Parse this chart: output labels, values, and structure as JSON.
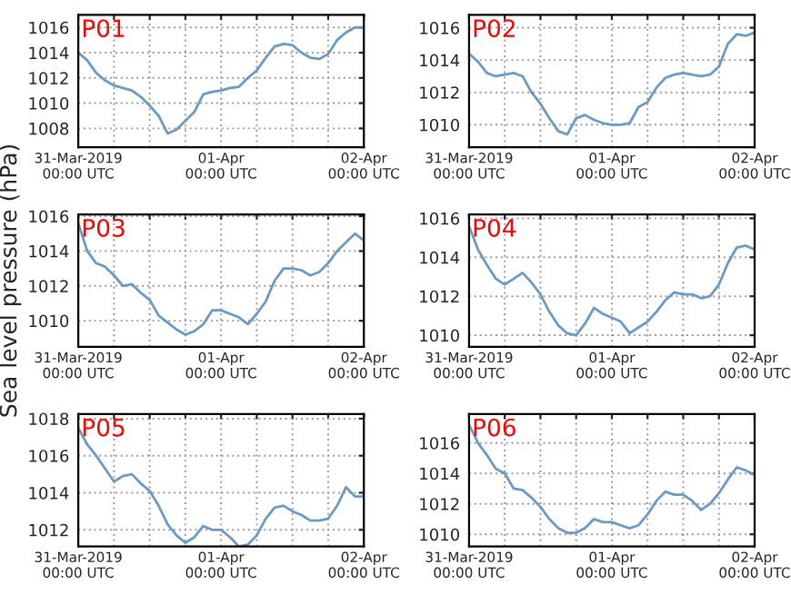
{
  "chart_data": [
    {
      "type": "line",
      "annotations": [
        "P01"
      ],
      "x": [
        "2019-03-31T00:00",
        "2019-03-31T01:30",
        "2019-03-31T03:00",
        "2019-03-31T04:30",
        "2019-03-31T06:00",
        "2019-03-31T07:30",
        "2019-03-31T09:00",
        "2019-03-31T10:30",
        "2019-03-31T12:00",
        "2019-03-31T13:30",
        "2019-03-31T15:00",
        "2019-03-31T16:30",
        "2019-03-31T18:00",
        "2019-03-31T19:30",
        "2019-03-31T21:00",
        "2019-03-31T22:30",
        "2019-04-01T00:00",
        "2019-04-01T01:30",
        "2019-04-01T03:00",
        "2019-04-01T04:30",
        "2019-04-01T06:00",
        "2019-04-01T07:30",
        "2019-04-01T09:00",
        "2019-04-01T10:30",
        "2019-04-01T12:00",
        "2019-04-01T13:30",
        "2019-04-01T15:00",
        "2019-04-01T16:30",
        "2019-04-01T18:00",
        "2019-04-01T19:30",
        "2019-04-01T21:00",
        "2019-04-01T22:30",
        "2019-04-02T00:00"
      ],
      "series": [
        {
          "color": "#6b9ac4",
          "values": [
            1014.0,
            1013.4,
            1012.4,
            1011.8,
            1011.4,
            1011.2,
            1011.0,
            1010.5,
            1009.8,
            1009.0,
            1007.6,
            1007.9,
            1008.6,
            1009.3,
            1010.7,
            1010.9,
            1011.0,
            1011.2,
            1011.3,
            1012.0,
            1012.6,
            1013.6,
            1014.5,
            1014.7,
            1014.6,
            1014.0,
            1013.6,
            1013.5,
            1013.9,
            1015.0,
            1015.6,
            1016.0,
            1016.0
          ]
        }
      ],
      "xlim": [
        "2019-03-31T00:00",
        "2019-04-02T00:00"
      ],
      "xticks": [
        {
          "value": "2019-03-31T00:00",
          "label": "31-Mar-2019\n00:00 UTC"
        },
        {
          "value": "2019-03-31T06:00",
          "label": null
        },
        {
          "value": "2019-03-31T12:00",
          "label": null
        },
        {
          "value": "2019-03-31T18:00",
          "label": null
        },
        {
          "value": "2019-04-01T00:00",
          "label": "01-Apr\n00:00 UTC"
        },
        {
          "value": "2019-04-01T06:00",
          "label": null
        },
        {
          "value": "2019-04-01T12:00",
          "label": null
        },
        {
          "value": "2019-04-01T18:00",
          "label": null
        },
        {
          "value": "2019-04-02T00:00",
          "label": "02-Apr\n00:00 UTC"
        }
      ],
      "ylim": [
        1006.5,
        1017
      ],
      "yticks": [
        1008,
        1010,
        1012,
        1014,
        1016
      ],
      "grid": true
    },
    {
      "type": "line",
      "annotations": [
        "P02"
      ],
      "x": [
        "2019-03-31T00:00",
        "2019-03-31T01:30",
        "2019-03-31T03:00",
        "2019-03-31T04:30",
        "2019-03-31T06:00",
        "2019-03-31T07:30",
        "2019-03-31T09:00",
        "2019-03-31T10:30",
        "2019-03-31T12:00",
        "2019-03-31T13:30",
        "2019-03-31T15:00",
        "2019-03-31T16:30",
        "2019-03-31T18:00",
        "2019-03-31T19:30",
        "2019-03-31T21:00",
        "2019-03-31T22:30",
        "2019-04-01T00:00",
        "2019-04-01T01:30",
        "2019-04-01T03:00",
        "2019-04-01T04:30",
        "2019-04-01T06:00",
        "2019-04-01T07:30",
        "2019-04-01T09:00",
        "2019-04-01T10:30",
        "2019-04-01T12:00",
        "2019-04-01T13:30",
        "2019-04-01T15:00",
        "2019-04-01T16:30",
        "2019-04-01T18:00",
        "2019-04-01T19:30",
        "2019-04-01T21:00",
        "2019-04-01T22:30",
        "2019-04-02T00:00"
      ],
      "series": [
        {
          "color": "#6b9ac4",
          "values": [
            1014.4,
            1013.9,
            1013.2,
            1013.0,
            1013.1,
            1013.2,
            1013.0,
            1012.0,
            1011.3,
            1010.4,
            1009.6,
            1009.4,
            1010.4,
            1010.6,
            1010.3,
            1010.1,
            1010.0,
            1010.0,
            1010.1,
            1011.1,
            1011.4,
            1012.3,
            1012.9,
            1013.1,
            1013.2,
            1013.1,
            1013.0,
            1013.1,
            1013.6,
            1015.0,
            1015.6,
            1015.5,
            1015.7
          ]
        }
      ],
      "xlim": [
        "2019-03-31T00:00",
        "2019-04-02T00:00"
      ],
      "xticks": [
        {
          "value": "2019-03-31T00:00",
          "label": "31-Mar-2019\n00:00 UTC"
        },
        {
          "value": "2019-03-31T06:00",
          "label": null
        },
        {
          "value": "2019-03-31T12:00",
          "label": null
        },
        {
          "value": "2019-03-31T18:00",
          "label": null
        },
        {
          "value": "2019-04-01T00:00",
          "label": "01-Apr\n00:00 UTC"
        },
        {
          "value": "2019-04-01T06:00",
          "label": null
        },
        {
          "value": "2019-04-01T12:00",
          "label": null
        },
        {
          "value": "2019-04-01T18:00",
          "label": null
        },
        {
          "value": "2019-04-02T00:00",
          "label": "02-Apr\n00:00 UTC"
        }
      ],
      "ylim": [
        1008.6,
        1016.8
      ],
      "yticks": [
        1010,
        1012,
        1014,
        1016
      ],
      "grid": true
    },
    {
      "type": "line",
      "annotations": [
        "P03"
      ],
      "ylabel": "Sea level pressure (hPa)",
      "x": [
        "2019-03-31T00:00",
        "2019-03-31T01:30",
        "2019-03-31T03:00",
        "2019-03-31T04:30",
        "2019-03-31T06:00",
        "2019-03-31T07:30",
        "2019-03-31T09:00",
        "2019-03-31T10:30",
        "2019-03-31T12:00",
        "2019-03-31T13:30",
        "2019-03-31T15:00",
        "2019-03-31T16:30",
        "2019-03-31T18:00",
        "2019-03-31T19:30",
        "2019-03-31T21:00",
        "2019-03-31T22:30",
        "2019-04-01T00:00",
        "2019-04-01T01:30",
        "2019-04-01T03:00",
        "2019-04-01T04:30",
        "2019-04-01T06:00",
        "2019-04-01T07:30",
        "2019-04-01T09:00",
        "2019-04-01T10:30",
        "2019-04-01T12:00",
        "2019-04-01T13:30",
        "2019-04-01T15:00",
        "2019-04-01T16:30",
        "2019-04-01T18:00",
        "2019-04-01T19:30",
        "2019-04-01T21:00",
        "2019-04-01T22:30",
        "2019-04-02T00:00"
      ],
      "series": [
        {
          "color": "#6b9ac4",
          "values": [
            1015.6,
            1014.0,
            1013.3,
            1013.1,
            1012.6,
            1012.0,
            1012.1,
            1011.6,
            1011.2,
            1010.3,
            1009.9,
            1009.5,
            1009.2,
            1009.4,
            1009.8,
            1010.6,
            1010.6,
            1010.4,
            1010.2,
            1009.8,
            1010.4,
            1011.1,
            1012.3,
            1013.0,
            1013.0,
            1012.9,
            1012.6,
            1012.8,
            1013.3,
            1014.0,
            1014.5,
            1015.0,
            1014.6
          ]
        }
      ],
      "xlim": [
        "2019-03-31T00:00",
        "2019-04-02T00:00"
      ],
      "xticks": [
        {
          "value": "2019-03-31T00:00",
          "label": "31-Mar-2019\n00:00 UTC"
        },
        {
          "value": "2019-03-31T06:00",
          "label": null
        },
        {
          "value": "2019-03-31T12:00",
          "label": null
        },
        {
          "value": "2019-03-31T18:00",
          "label": null
        },
        {
          "value": "2019-04-01T00:00",
          "label": "01-Apr\n00:00 UTC"
        },
        {
          "value": "2019-04-01T06:00",
          "label": null
        },
        {
          "value": "2019-04-01T12:00",
          "label": null
        },
        {
          "value": "2019-04-01T18:00",
          "label": null
        },
        {
          "value": "2019-04-02T00:00",
          "label": "02-Apr\n00:00 UTC"
        }
      ],
      "ylim": [
        1008.5,
        1016.1
      ],
      "yticks": [
        1010,
        1012,
        1014,
        1016
      ],
      "grid": true
    },
    {
      "type": "line",
      "annotations": [
        "P04"
      ],
      "x": [
        "2019-03-31T00:00",
        "2019-03-31T01:30",
        "2019-03-31T03:00",
        "2019-03-31T04:30",
        "2019-03-31T06:00",
        "2019-03-31T07:30",
        "2019-03-31T09:00",
        "2019-03-31T10:30",
        "2019-03-31T12:00",
        "2019-03-31T13:30",
        "2019-03-31T15:00",
        "2019-03-31T16:30",
        "2019-03-31T18:00",
        "2019-03-31T19:30",
        "2019-03-31T21:00",
        "2019-03-31T22:30",
        "2019-04-01T00:00",
        "2019-04-01T01:30",
        "2019-04-01T03:00",
        "2019-04-01T04:30",
        "2019-04-01T06:00",
        "2019-04-01T07:30",
        "2019-04-01T09:00",
        "2019-04-01T10:30",
        "2019-04-01T12:00",
        "2019-04-01T13:30",
        "2019-04-01T15:00",
        "2019-04-01T16:30",
        "2019-04-01T18:00",
        "2019-04-01T19:30",
        "2019-04-01T21:00",
        "2019-04-01T22:30",
        "2019-04-02T00:00"
      ],
      "series": [
        {
          "color": "#6b9ac4",
          "values": [
            1015.6,
            1014.4,
            1013.6,
            1012.9,
            1012.6,
            1012.9,
            1013.2,
            1012.7,
            1012.1,
            1011.2,
            1010.5,
            1010.1,
            1010.0,
            1010.6,
            1011.4,
            1011.1,
            1010.9,
            1010.7,
            1010.1,
            1010.4,
            1010.7,
            1011.2,
            1011.8,
            1012.2,
            1012.1,
            1012.1,
            1011.9,
            1012.0,
            1012.6,
            1013.7,
            1014.5,
            1014.6,
            1014.4
          ]
        }
      ],
      "xlim": [
        "2019-03-31T00:00",
        "2019-04-02T00:00"
      ],
      "xticks": [
        {
          "value": "2019-03-31T00:00",
          "label": "31-Mar-2019\n00:00 UTC"
        },
        {
          "value": "2019-03-31T06:00",
          "label": null
        },
        {
          "value": "2019-03-31T12:00",
          "label": null
        },
        {
          "value": "2019-03-31T18:00",
          "label": null
        },
        {
          "value": "2019-04-01T00:00",
          "label": "01-Apr\n00:00 UTC"
        },
        {
          "value": "2019-04-01T06:00",
          "label": null
        },
        {
          "value": "2019-04-01T12:00",
          "label": null
        },
        {
          "value": "2019-04-01T18:00",
          "label": null
        },
        {
          "value": "2019-04-02T00:00",
          "label": "02-Apr\n00:00 UTC"
        }
      ],
      "ylim": [
        1009.4,
        1016.2
      ],
      "yticks": [
        1010,
        1012,
        1014,
        1016
      ],
      "grid": true
    },
    {
      "type": "line",
      "annotations": [
        "P05"
      ],
      "x": [
        "2019-03-31T00:00",
        "2019-03-31T01:30",
        "2019-03-31T03:00",
        "2019-03-31T04:30",
        "2019-03-31T06:00",
        "2019-03-31T07:30",
        "2019-03-31T09:00",
        "2019-03-31T10:30",
        "2019-03-31T12:00",
        "2019-03-31T13:30",
        "2019-03-31T15:00",
        "2019-03-31T16:30",
        "2019-03-31T18:00",
        "2019-03-31T19:30",
        "2019-03-31T21:00",
        "2019-03-31T22:30",
        "2019-04-01T00:00",
        "2019-04-01T01:30",
        "2019-04-01T03:00",
        "2019-04-01T04:30",
        "2019-04-01T06:00",
        "2019-04-01T07:30",
        "2019-04-01T09:00",
        "2019-04-01T10:30",
        "2019-04-01T12:00",
        "2019-04-01T13:30",
        "2019-04-01T15:00",
        "2019-04-01T16:30",
        "2019-04-01T18:00",
        "2019-04-01T19:30",
        "2019-04-01T21:00",
        "2019-04-01T22:30",
        "2019-04-02T00:00"
      ],
      "series": [
        {
          "color": "#6b9ac4",
          "values": [
            1017.5,
            1016.6,
            1016.0,
            1015.3,
            1014.6,
            1014.9,
            1015.0,
            1014.5,
            1014.1,
            1013.3,
            1012.3,
            1011.7,
            1011.3,
            1011.6,
            1012.2,
            1012.0,
            1012.0,
            1011.6,
            1011.1,
            1011.2,
            1011.7,
            1012.6,
            1013.2,
            1013.3,
            1013.0,
            1012.8,
            1012.5,
            1012.5,
            1012.6,
            1013.3,
            1014.3,
            1013.8,
            1013.8
          ]
        }
      ],
      "xlim": [
        "2019-03-31T00:00",
        "2019-04-02T00:00"
      ],
      "xticks": [
        {
          "value": "2019-03-31T00:00",
          "label": "31-Mar-2019\n00:00 UTC"
        },
        {
          "value": "2019-03-31T06:00",
          "label": null
        },
        {
          "value": "2019-03-31T12:00",
          "label": null
        },
        {
          "value": "2019-03-31T18:00",
          "label": null
        },
        {
          "value": "2019-04-01T00:00",
          "label": "01-Apr\n00:00 UTC"
        },
        {
          "value": "2019-04-01T06:00",
          "label": null
        },
        {
          "value": "2019-04-01T12:00",
          "label": null
        },
        {
          "value": "2019-04-01T18:00",
          "label": null
        },
        {
          "value": "2019-04-02T00:00",
          "label": "02-Apr\n00:00 UTC"
        }
      ],
      "ylim": [
        1011.1,
        1018.25
      ],
      "yticks": [
        1012,
        1014,
        1016,
        1018
      ],
      "grid": true
    },
    {
      "type": "line",
      "annotations": [
        "P06"
      ],
      "x": [
        "2019-03-31T00:00",
        "2019-03-31T01:30",
        "2019-03-31T03:00",
        "2019-03-31T04:30",
        "2019-03-31T06:00",
        "2019-03-31T07:30",
        "2019-03-31T09:00",
        "2019-03-31T10:30",
        "2019-03-31T12:00",
        "2019-03-31T13:30",
        "2019-03-31T15:00",
        "2019-03-31T16:30",
        "2019-03-31T18:00",
        "2019-03-31T19:30",
        "2019-03-31T21:00",
        "2019-03-31T22:30",
        "2019-04-01T00:00",
        "2019-04-01T01:30",
        "2019-04-01T03:00",
        "2019-04-01T04:30",
        "2019-04-01T06:00",
        "2019-04-01T07:30",
        "2019-04-01T09:00",
        "2019-04-01T10:30",
        "2019-04-01T12:00",
        "2019-04-01T13:30",
        "2019-04-01T15:00",
        "2019-04-01T16:30",
        "2019-04-01T18:00",
        "2019-04-01T19:30",
        "2019-04-01T21:00",
        "2019-04-01T22:30",
        "2019-04-02T00:00"
      ],
      "series": [
        {
          "color": "#6b9ac4",
          "values": [
            1017.2,
            1016.0,
            1015.2,
            1014.3,
            1014.0,
            1013.0,
            1012.9,
            1012.4,
            1011.8,
            1011.0,
            1010.4,
            1010.1,
            1010.1,
            1010.4,
            1011.0,
            1010.8,
            1010.8,
            1010.6,
            1010.4,
            1010.6,
            1011.3,
            1012.2,
            1012.8,
            1012.6,
            1012.6,
            1012.2,
            1011.6,
            1012.0,
            1012.7,
            1013.6,
            1014.4,
            1014.2,
            1013.9
          ]
        }
      ],
      "xlim": [
        "2019-03-31T00:00",
        "2019-04-02T00:00"
      ],
      "xticks": [
        {
          "value": "2019-03-31T00:00",
          "label": "31-Mar-2019\n00:00 UTC"
        },
        {
          "value": "2019-03-31T06:00",
          "label": null
        },
        {
          "value": "2019-03-31T12:00",
          "label": null
        },
        {
          "value": "2019-03-31T18:00",
          "label": null
        },
        {
          "value": "2019-04-01T00:00",
          "label": "01-Apr\n00:00 UTC"
        },
        {
          "value": "2019-04-01T06:00",
          "label": null
        },
        {
          "value": "2019-04-01T12:00",
          "label": null
        },
        {
          "value": "2019-04-01T18:00",
          "label": null
        },
        {
          "value": "2019-04-02T00:00",
          "label": "02-Apr\n00:00 UTC"
        }
      ],
      "ylim": [
        1009.2,
        1017.9
      ],
      "yticks": [
        1010,
        1012,
        1014,
        1016
      ],
      "grid": true
    }
  ]
}
